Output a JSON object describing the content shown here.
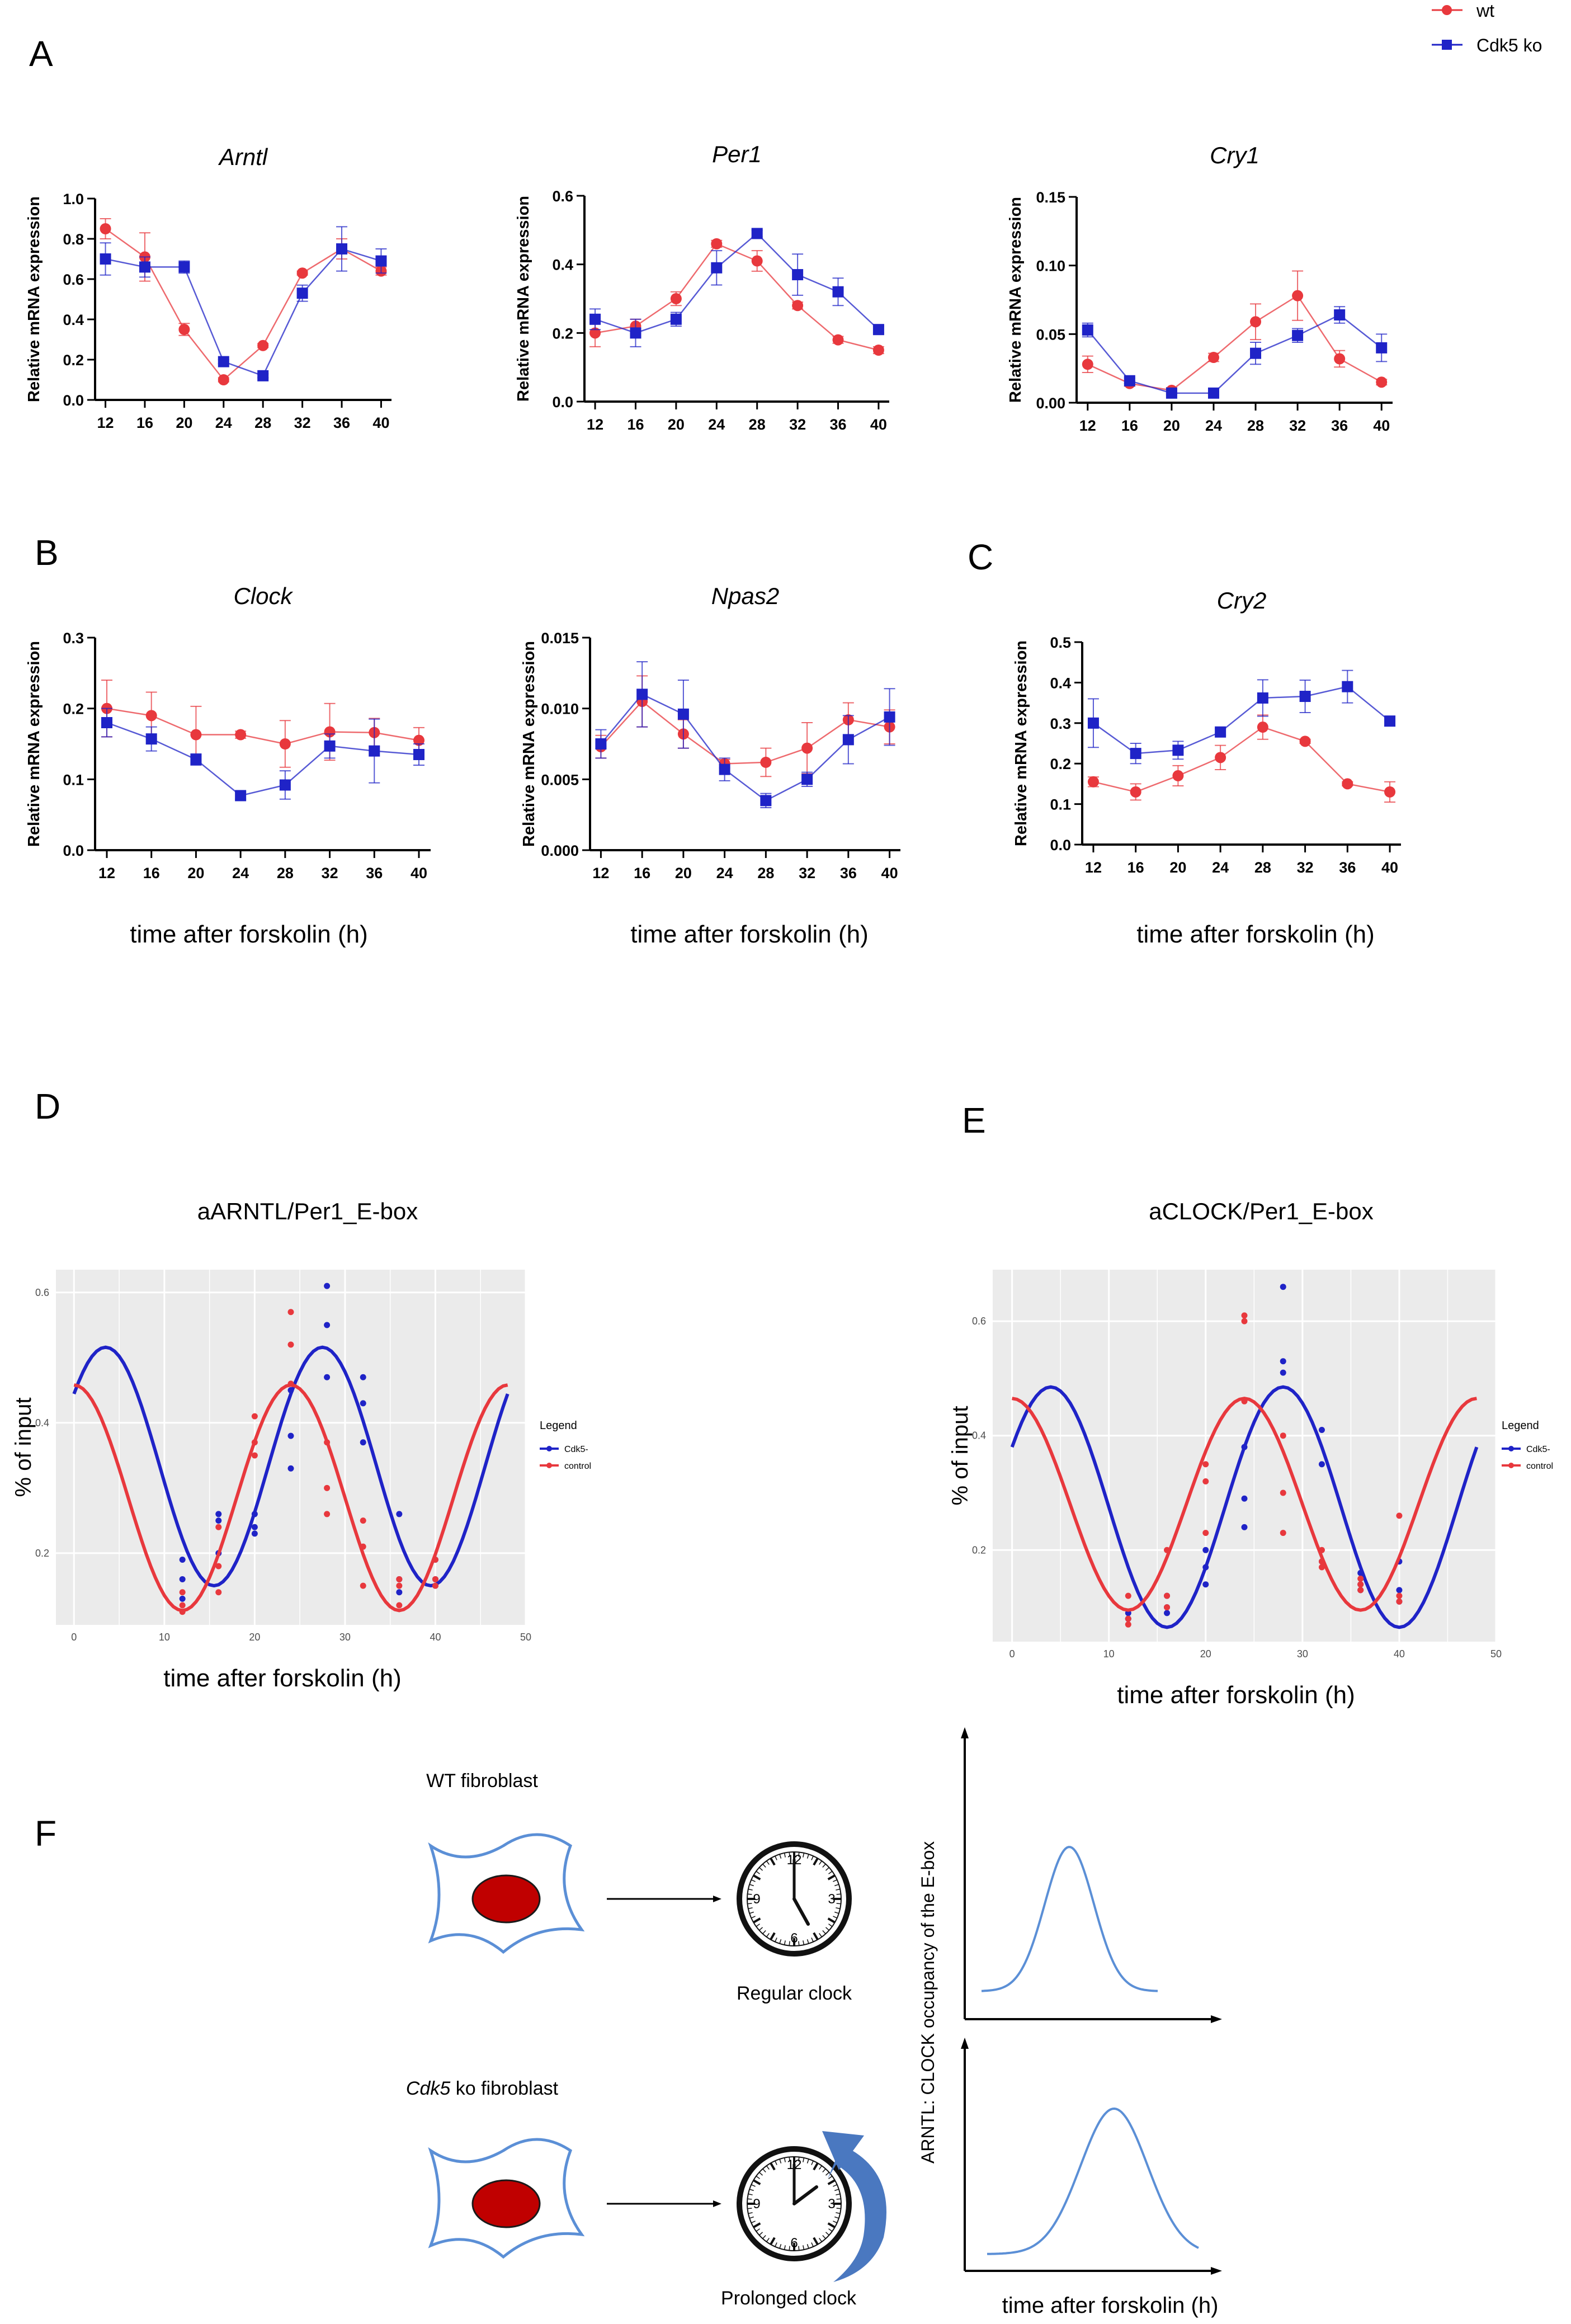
{
  "colors": {
    "wt": "#e8383d",
    "ko": "#1f23c7",
    "ggplot_bg": "#ebebeb",
    "diagram_line": "#5b8fd6",
    "nucleus": "#c00000"
  },
  "legend_top": {
    "wt": "wt",
    "ko": "Cdk5 ko"
  },
  "panel_letters": {
    "A": "A",
    "B": "B",
    "C": "C",
    "D": "D",
    "E": "E",
    "F": "F"
  },
  "common": {
    "ylabel": "Relative mRNA expression",
    "xlabel": "time after forskolin (h)"
  },
  "chart_data": [
    {
      "id": "arntl",
      "type": "line",
      "title": "Arntl",
      "ylabel": "Relative mRNA expression",
      "ylim": [
        0,
        1.0
      ],
      "yticks": [
        "0.0",
        "0.2",
        "0.4",
        "0.6",
        "0.8",
        "1.0"
      ],
      "categories": [
        "12",
        "16",
        "20",
        "24",
        "28",
        "32",
        "36",
        "40"
      ],
      "series": [
        {
          "name": "wt",
          "values": [
            0.85,
            0.71,
            0.35,
            0.1,
            0.27,
            0.63,
            0.75,
            0.64
          ],
          "err": [
            0.05,
            0.12,
            0.03,
            0.01,
            0.01,
            0.01,
            0.05,
            0.02
          ]
        },
        {
          "name": "Cdk5 ko",
          "values": [
            0.7,
            0.66,
            0.66,
            0.19,
            0.12,
            0.53,
            0.75,
            0.69
          ],
          "err": [
            0.08,
            0.05,
            0.03,
            0.01,
            0.01,
            0.04,
            0.11,
            0.06
          ]
        }
      ]
    },
    {
      "id": "per1",
      "type": "line",
      "title": "Per1",
      "ylabel": "Relative mRNA expression",
      "ylim": [
        0,
        0.6
      ],
      "yticks": [
        "0.0",
        "0.2",
        "0.4",
        "0.6"
      ],
      "categories": [
        "12",
        "16",
        "20",
        "24",
        "28",
        "32",
        "36",
        "40"
      ],
      "series": [
        {
          "name": "wt",
          "values": [
            0.2,
            0.22,
            0.3,
            0.46,
            0.41,
            0.28,
            0.18,
            0.15
          ],
          "err": [
            0.04,
            0.02,
            0.02,
            0.01,
            0.03,
            0.01,
            0.01,
            0.01
          ]
        },
        {
          "name": "Cdk5 ko",
          "values": [
            0.24,
            0.2,
            0.24,
            0.39,
            0.49,
            0.37,
            0.32,
            0.21
          ],
          "err": [
            0.03,
            0.04,
            0.02,
            0.05,
            0.01,
            0.06,
            0.04,
            0.01
          ]
        }
      ]
    },
    {
      "id": "cry1",
      "type": "line",
      "title": "Cry1",
      "ylabel": "Relative mRNA expression",
      "ylim": [
        0,
        0.15
      ],
      "yticks": [
        "0.00",
        "0.05",
        "0.10",
        "0.15"
      ],
      "categories": [
        "12",
        "16",
        "20",
        "24",
        "28",
        "32",
        "36",
        "40"
      ],
      "series": [
        {
          "name": "wt",
          "values": [
            0.028,
            0.014,
            0.009,
            0.033,
            0.059,
            0.078,
            0.032,
            0.015
          ],
          "err": [
            0.006,
            0.002,
            0.002,
            0.003,
            0.013,
            0.018,
            0.006,
            0.002
          ]
        },
        {
          "name": "Cdk5 ko",
          "values": [
            0.053,
            0.016,
            0.007,
            0.007,
            0.036,
            0.049,
            0.064,
            0.04
          ],
          "err": [
            0.005,
            0.002,
            0.001,
            0.001,
            0.008,
            0.005,
            0.006,
            0.01
          ]
        }
      ]
    },
    {
      "id": "clock",
      "type": "line",
      "title": "Clock",
      "ylabel": "Relative mRNA expression",
      "ylim": [
        0,
        0.3
      ],
      "yticks": [
        "0.0",
        "0.1",
        "0.2",
        "0.3"
      ],
      "categories": [
        "12",
        "16",
        "20",
        "24",
        "28",
        "32",
        "36",
        "40"
      ],
      "series": [
        {
          "name": "wt",
          "values": [
            0.2,
            0.19,
            0.163,
            0.163,
            0.15,
            0.167,
            0.166,
            0.155
          ],
          "err": [
            0.04,
            0.033,
            0.04,
            0.005,
            0.033,
            0.04,
            0.02,
            0.018
          ]
        },
        {
          "name": "Cdk5 ko",
          "values": [
            0.18,
            0.157,
            0.128,
            0.077,
            0.092,
            0.147,
            0.14,
            0.135
          ],
          "err": [
            0.02,
            0.017,
            0.008,
            0.005,
            0.02,
            0.017,
            0.045,
            0.015
          ]
        }
      ]
    },
    {
      "id": "npas2",
      "type": "line",
      "title": "Npas2",
      "ylabel": "Relative mRNA expression",
      "ylim": [
        0,
        0.015
      ],
      "yticks": [
        "0.000",
        "0.005",
        "0.010",
        "0.015"
      ],
      "categories": [
        "12",
        "16",
        "20",
        "24",
        "28",
        "32",
        "36",
        "40"
      ],
      "series": [
        {
          "name": "wt",
          "values": [
            0.0073,
            0.0105,
            0.0082,
            0.0061,
            0.0062,
            0.0072,
            0.0092,
            0.0087
          ],
          "err": [
            0.0008,
            0.0018,
            0.001,
            0.0003,
            0.001,
            0.0018,
            0.0012,
            0.0012
          ]
        },
        {
          "name": "Cdk5 ko",
          "values": [
            0.0075,
            0.011,
            0.0096,
            0.0057,
            0.0035,
            0.005,
            0.0078,
            0.0094
          ],
          "err": [
            0.001,
            0.0023,
            0.0024,
            0.0008,
            0.0005,
            0.0005,
            0.0017,
            0.002
          ]
        }
      ]
    },
    {
      "id": "cry2",
      "type": "line",
      "title": "Cry2",
      "ylabel": "Relative mRNA expression",
      "ylim": [
        0,
        0.5
      ],
      "yticks": [
        "0.0",
        "0.1",
        "0.2",
        "0.3",
        "0.4",
        "0.5"
      ],
      "categories": [
        "12",
        "16",
        "20",
        "24",
        "28",
        "32",
        "36",
        "40"
      ],
      "series": [
        {
          "name": "wt",
          "values": [
            0.155,
            0.13,
            0.17,
            0.215,
            0.29,
            0.255,
            0.15,
            0.13
          ],
          "err": [
            0.012,
            0.02,
            0.025,
            0.03,
            0.03,
            0.005,
            0.005,
            0.025
          ]
        },
        {
          "name": "Cdk5 ko",
          "values": [
            0.3,
            0.225,
            0.233,
            0.278,
            0.362,
            0.366,
            0.39,
            0.305
          ],
          "err": [
            0.06,
            0.025,
            0.022,
            0.008,
            0.045,
            0.04,
            0.04,
            0.012
          ]
        }
      ]
    },
    {
      "id": "chipArntl",
      "type": "scatter",
      "title": "aARNTL/Per1_E-box",
      "ylabel": "% of input",
      "xlabel": "time after forskolin (h)",
      "xlim": [
        -2,
        50
      ],
      "ylim": [
        0.09,
        0.635
      ],
      "xticks": [
        0,
        10,
        20,
        30,
        40,
        50
      ],
      "yticks": [
        0.2,
        0.4,
        0.6
      ],
      "legend_title": "Legend",
      "series": [
        {
          "name": "Cdk5-",
          "fit": {
            "mean": 0.333,
            "amp": 0.183,
            "period": 24.0,
            "peak": 27.5
          },
          "points": [
            [
              12,
              0.19
            ],
            [
              12,
              0.16
            ],
            [
              12,
              0.13
            ],
            [
              16,
              0.26
            ],
            [
              16,
              0.25
            ],
            [
              16,
              0.2
            ],
            [
              20,
              0.26
            ],
            [
              20,
              0.24
            ],
            [
              20,
              0.23
            ],
            [
              24,
              0.45
            ],
            [
              24,
              0.38
            ],
            [
              24,
              0.33
            ],
            [
              28,
              0.61
            ],
            [
              28,
              0.55
            ],
            [
              28,
              0.47
            ],
            [
              32,
              0.47
            ],
            [
              32,
              0.43
            ],
            [
              32,
              0.37
            ],
            [
              36,
              0.26
            ],
            [
              36,
              0.16
            ],
            [
              36,
              0.14
            ],
            [
              40,
              0.19
            ],
            [
              40,
              0.16
            ],
            [
              40,
              0.15
            ]
          ]
        },
        {
          "name": "control",
          "fit": {
            "mean": 0.285,
            "amp": 0.173,
            "period": 24.0,
            "peak": 24.0
          },
          "points": [
            [
              12,
              0.14
            ],
            [
              12,
              0.12
            ],
            [
              12,
              0.11
            ],
            [
              16,
              0.24
            ],
            [
              16,
              0.18
            ],
            [
              16,
              0.14
            ],
            [
              20,
              0.41
            ],
            [
              20,
              0.37
            ],
            [
              20,
              0.35
            ],
            [
              24,
              0.57
            ],
            [
              24,
              0.52
            ],
            [
              24,
              0.46
            ],
            [
              28,
              0.37
            ],
            [
              28,
              0.3
            ],
            [
              28,
              0.26
            ],
            [
              32,
              0.25
            ],
            [
              32,
              0.21
            ],
            [
              32,
              0.15
            ],
            [
              36,
              0.16
            ],
            [
              36,
              0.15
            ],
            [
              36,
              0.12
            ],
            [
              40,
              0.19
            ],
            [
              40,
              0.16
            ],
            [
              40,
              0.15
            ]
          ]
        }
      ]
    },
    {
      "id": "chipClock",
      "type": "scatter",
      "title": "aCLOCK/Per1_E-box",
      "ylabel": "% of input",
      "xlabel": "time after forskolin (h)",
      "xlim": [
        -2,
        50
      ],
      "ylim": [
        0.04,
        0.69
      ],
      "xticks": [
        0,
        10,
        20,
        30,
        40,
        50
      ],
      "yticks": [
        0.2,
        0.4,
        0.6
      ],
      "legend_title": "Legend",
      "series": [
        {
          "name": "Cdk5-",
          "fit": {
            "mean": 0.275,
            "amp": 0.21,
            "period": 24.0,
            "peak": 28.0
          },
          "points": [
            [
              12,
              0.09
            ],
            [
              12,
              0.08
            ],
            [
              12,
              0.08
            ],
            [
              16,
              0.12
            ],
            [
              16,
              0.1
            ],
            [
              16,
              0.09
            ],
            [
              20,
              0.2
            ],
            [
              20,
              0.17
            ],
            [
              20,
              0.14
            ],
            [
              24,
              0.38
            ],
            [
              24,
              0.29
            ],
            [
              24,
              0.24
            ],
            [
              28,
              0.66
            ],
            [
              28,
              0.53
            ],
            [
              28,
              0.51
            ],
            [
              32,
              0.41
            ],
            [
              32,
              0.35
            ],
            [
              32,
              0.18
            ],
            [
              36,
              0.16
            ],
            [
              36,
              0.14
            ],
            [
              36,
              0.13
            ],
            [
              40,
              0.18
            ],
            [
              40,
              0.13
            ],
            [
              40,
              0.11
            ]
          ]
        },
        {
          "name": "control",
          "fit": {
            "mean": 0.28,
            "amp": 0.185,
            "period": 24.0,
            "peak": 24.0
          },
          "points": [
            [
              12,
              0.12
            ],
            [
              12,
              0.08
            ],
            [
              12,
              0.07
            ],
            [
              16,
              0.2
            ],
            [
              16,
              0.12
            ],
            [
              16,
              0.1
            ],
            [
              20,
              0.35
            ],
            [
              20,
              0.32
            ],
            [
              20,
              0.23
            ],
            [
              24,
              0.61
            ],
            [
              24,
              0.6
            ],
            [
              24,
              0.46
            ],
            [
              28,
              0.4
            ],
            [
              28,
              0.3
            ],
            [
              28,
              0.23
            ],
            [
              32,
              0.2
            ],
            [
              32,
              0.18
            ],
            [
              32,
              0.17
            ],
            [
              36,
              0.15
            ],
            [
              36,
              0.14
            ],
            [
              36,
              0.13
            ],
            [
              40,
              0.26
            ],
            [
              40,
              0.12
            ],
            [
              40,
              0.11
            ]
          ]
        }
      ]
    }
  ],
  "diagram": {
    "wt_title": "WT fibroblast",
    "ko_title_italic": "Cdk5",
    "ko_title_rest": " ko fibroblast",
    "regular_clock": "Regular clock",
    "prolonged_clock": "Prolonged clock",
    "clock_numbers": [
      "12",
      "3",
      "6",
      "9"
    ],
    "y_axis_label": "ARNTL: CLOCK occupancy of the E-box",
    "x_axis_label": "time after forskolin (h)"
  }
}
